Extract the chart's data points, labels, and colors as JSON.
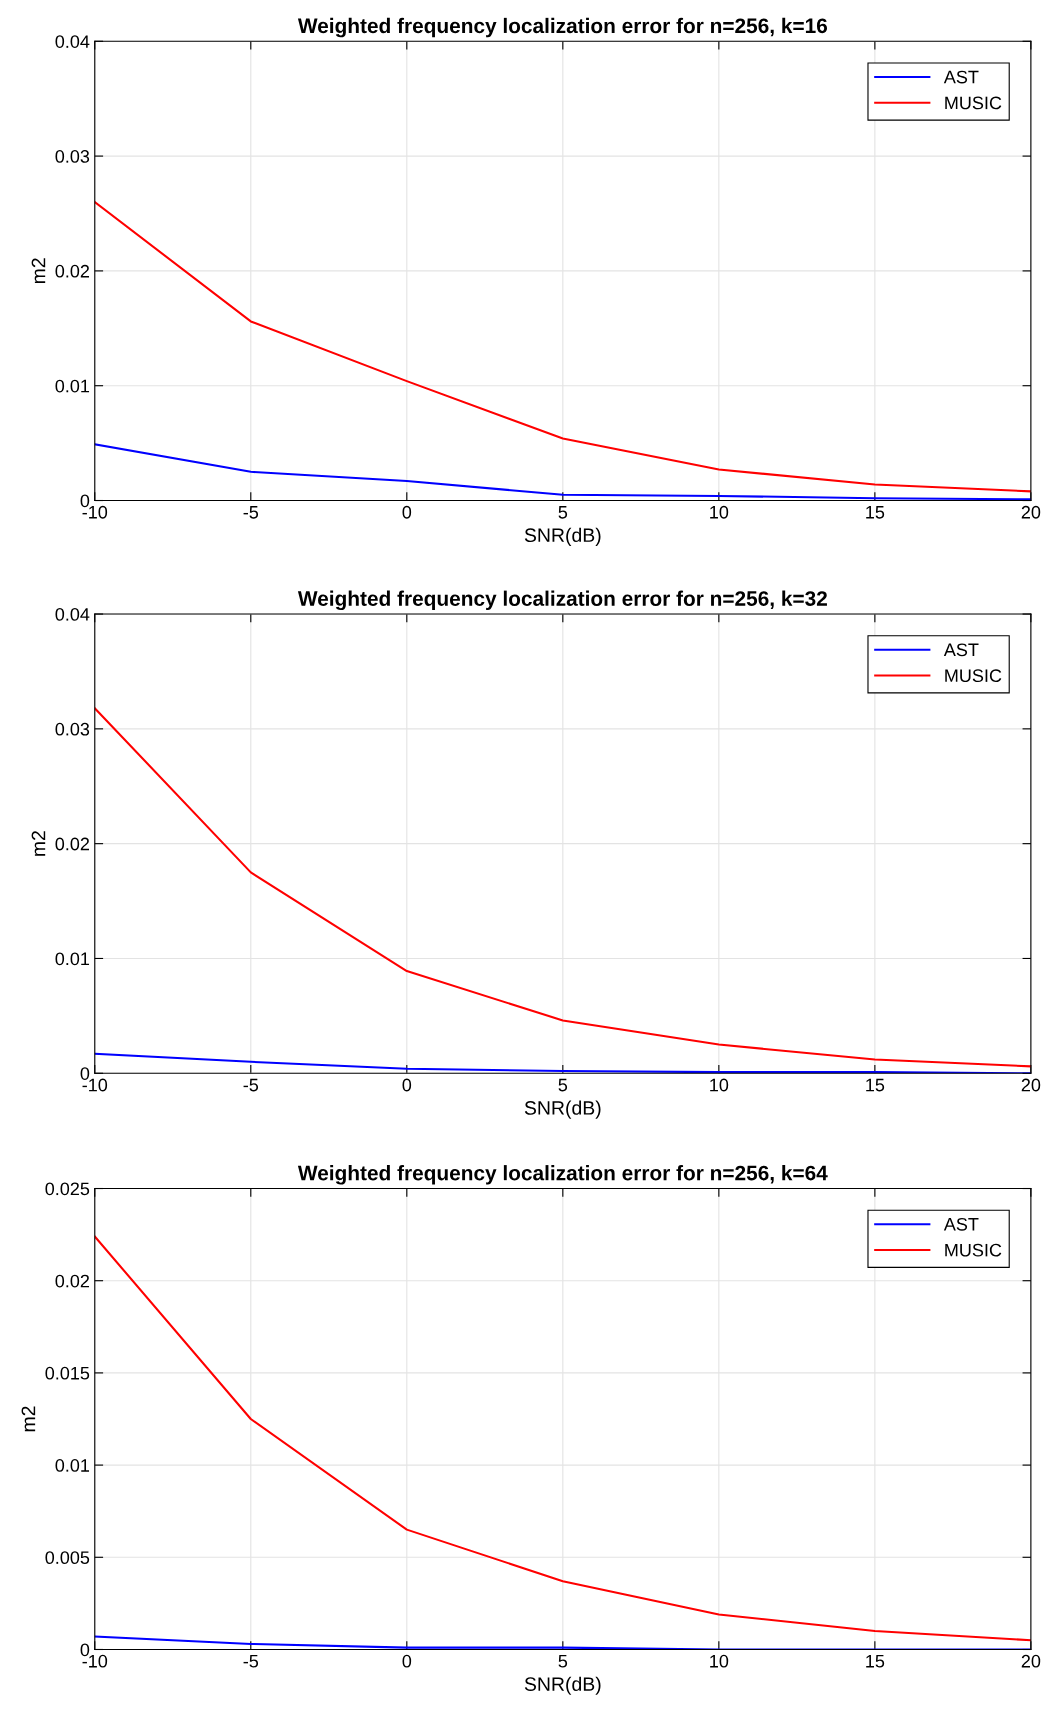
{
  "chart_data": [
    {
      "type": "line",
      "title": "Weighted frequency localization error for n=256, k=16",
      "xlabel": "SNR(dB)",
      "ylabel": "m2",
      "x": [
        -10,
        -5,
        0,
        5,
        10,
        15,
        20
      ],
      "series": [
        {
          "name": "AST",
          "color": "#0000ff",
          "values": [
            0.0049,
            0.0025,
            0.0017,
            0.0005,
            0.0004,
            0.0002,
            0.0001
          ]
        },
        {
          "name": "MUSIC",
          "color": "#ff0000",
          "values": [
            0.026,
            0.0156,
            0.0104,
            0.0054,
            0.0027,
            0.0014,
            0.0008
          ]
        }
      ],
      "xlim": [
        -10,
        20
      ],
      "xticks": [
        -10,
        -5,
        0,
        5,
        10,
        15,
        20
      ],
      "ylim": [
        0,
        0.04
      ],
      "yticks": [
        0,
        0.01,
        0.02,
        0.03,
        0.04
      ],
      "grid": true,
      "legend": "top right",
      "marker": "none",
      "line_style": "solid"
    },
    {
      "type": "line",
      "title": "Weighted frequency localization error for n=256, k=32",
      "xlabel": "SNR(dB)",
      "ylabel": "m2",
      "x": [
        -10,
        -5,
        0,
        5,
        10,
        15,
        20
      ],
      "series": [
        {
          "name": "AST",
          "color": "#0000ff",
          "values": [
            0.0017,
            0.001,
            0.0004,
            0.0002,
            0.0001,
            0.0001,
            0.0
          ]
        },
        {
          "name": "MUSIC",
          "color": "#ff0000",
          "values": [
            0.0318,
            0.0175,
            0.0089,
            0.0046,
            0.0025,
            0.0012,
            0.0006
          ]
        }
      ],
      "xlim": [
        -10,
        20
      ],
      "xticks": [
        -10,
        -5,
        0,
        5,
        10,
        15,
        20
      ],
      "ylim": [
        0,
        0.04
      ],
      "yticks": [
        0,
        0.01,
        0.02,
        0.03,
        0.04
      ],
      "grid": true,
      "legend": "top right",
      "marker": "none",
      "line_style": "solid"
    },
    {
      "type": "line",
      "title": "Weighted frequency localization error for n=256, k=64",
      "xlabel": "SNR(dB)",
      "ylabel": "m2",
      "x": [
        -10,
        -5,
        0,
        5,
        10,
        15,
        20
      ],
      "series": [
        {
          "name": "AST",
          "color": "#0000ff",
          "values": [
            0.0007,
            0.0003,
            0.0001,
            0.0001,
            0.0,
            0.0,
            0.0
          ]
        },
        {
          "name": "MUSIC",
          "color": "#ff0000",
          "values": [
            0.0224,
            0.0125,
            0.0065,
            0.0037,
            0.0019,
            0.001,
            0.0005
          ]
        }
      ],
      "xlim": [
        -10,
        20
      ],
      "xticks": [
        -10,
        -5,
        0,
        5,
        10,
        15,
        20
      ],
      "ylim": [
        0,
        0.025
      ],
      "yticks": [
        0,
        0.005,
        0.01,
        0.015,
        0.02,
        0.025
      ],
      "grid": true,
      "legend": "top right",
      "marker": "none",
      "line_style": "solid"
    }
  ]
}
